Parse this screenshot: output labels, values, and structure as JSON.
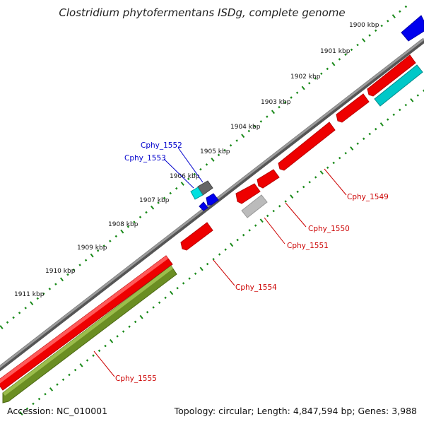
{
  "title": "Clostridium phytofermentans ISDg, complete genome",
  "footer": {
    "accession": "Accession: NC_010001",
    "summary": "Topology: circular; Length: 4,847,594 bp; Genes: 3,988"
  },
  "ticks": [
    {
      "label": "1900 kbp"
    },
    {
      "label": "1901 kbp"
    },
    {
      "label": "1902 kbp"
    },
    {
      "label": "1903 kbp"
    },
    {
      "label": "1904 kbp"
    },
    {
      "label": "1905 kbp"
    },
    {
      "label": "1906 kbp"
    },
    {
      "label": "1907 kbp"
    },
    {
      "label": "1908 kbp"
    },
    {
      "label": "1909 kbp"
    },
    {
      "label": "1910 kbp"
    },
    {
      "label": "1911 kbp"
    }
  ],
  "colors": {
    "cds_forward": "#ee0000",
    "cds_reverse": "#6b8e23",
    "trna": "#00c8c8",
    "other": "#0000ee",
    "misc": "#777777",
    "pseudo": "#bbbbbb",
    "backbone": "#888888",
    "tick": "#1a8a1a",
    "label_red": "#cc0000",
    "label_blue": "#0000cc"
  },
  "gene_labels": [
    {
      "name": "Cphy_1549",
      "color": "label_red"
    },
    {
      "name": "Cphy_1550",
      "color": "label_red"
    },
    {
      "name": "Cphy_1551",
      "color": "label_red"
    },
    {
      "name": "Cphy_1552",
      "color": "label_blue"
    },
    {
      "name": "Cphy_1553",
      "color": "label_blue"
    },
    {
      "name": "Cphy_1554",
      "color": "label_red"
    },
    {
      "name": "Cphy_1555",
      "color": "label_red"
    }
  ]
}
